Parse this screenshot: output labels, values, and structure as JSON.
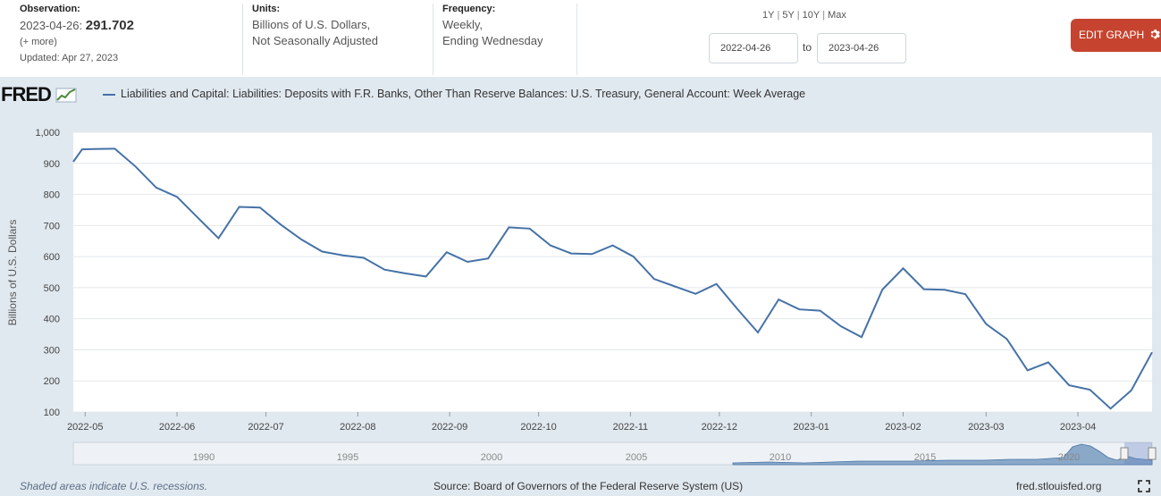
{
  "header": {
    "observation": {
      "label": "Observation:",
      "date": "2023-04-26:",
      "value": "291.702",
      "more": "(+ more)",
      "updated": "Updated: Apr 27, 2023"
    },
    "units": {
      "label": "Units:",
      "line1": "Billions of U.S. Dollars,",
      "line2": "Not Seasonally Adjusted"
    },
    "frequency": {
      "label": "Frequency:",
      "line1": "Weekly,",
      "line2": "Ending Wednesday"
    },
    "ranges": [
      "1Y",
      "5Y",
      "10Y",
      "Max"
    ],
    "date_from": "2022-04-26",
    "date_to": "2023-04-26",
    "to_label": "to",
    "edit_button": "EDIT GRAPH",
    "edit_icon": "gear-icon"
  },
  "logo": {
    "text": "FRED",
    "icon": "chart-trend-icon"
  },
  "chart_data": {
    "type": "line",
    "title": "Liabilities and Capital: Liabilities: Deposits with F.R. Banks, Other Than Reserve Balances: U.S. Treasury, General Account: Week Average",
    "ylabel": "Billions of U.S. Dollars",
    "ylim": [
      100,
      1000
    ],
    "yticks": [
      "1,000",
      "900",
      "800",
      "700",
      "600",
      "500",
      "400",
      "300",
      "200",
      "100"
    ],
    "yvalues": [
      1000,
      900,
      800,
      700,
      600,
      500,
      400,
      300,
      200,
      100
    ],
    "xlim": [
      "2022-04-27",
      "2023-04-26"
    ],
    "xticks": [
      {
        "label": "2022-05",
        "date": "2022-05-01"
      },
      {
        "label": "2022-06",
        "date": "2022-06-01"
      },
      {
        "label": "2022-07",
        "date": "2022-07-01"
      },
      {
        "label": "2022-08",
        "date": "2022-08-01"
      },
      {
        "label": "2022-09",
        "date": "2022-09-01"
      },
      {
        "label": "2022-10",
        "date": "2022-10-01"
      },
      {
        "label": "2022-11",
        "date": "2022-11-01"
      },
      {
        "label": "2022-12",
        "date": "2022-12-01"
      },
      {
        "label": "2023-01",
        "date": "2023-01-01"
      },
      {
        "label": "2023-02",
        "date": "2023-02-01"
      },
      {
        "label": "2023-03",
        "date": "2023-03-01"
      },
      {
        "label": "2023-04",
        "date": "2023-04-01"
      }
    ],
    "grid": true,
    "color": "#4572a7",
    "series": [
      {
        "x": [
          "2022-04-27",
          "2022-04-30",
          "2022-05-04",
          "2022-05-11",
          "2022-05-18",
          "2022-05-25",
          "2022-06-01",
          "2022-06-08",
          "2022-06-15",
          "2022-06-22",
          "2022-06-29",
          "2022-07-06",
          "2022-07-13",
          "2022-07-20",
          "2022-07-27",
          "2022-08-03",
          "2022-08-10",
          "2022-08-17",
          "2022-08-24",
          "2022-08-31",
          "2022-09-07",
          "2022-09-14",
          "2022-09-21",
          "2022-09-28",
          "2022-10-05",
          "2022-10-12",
          "2022-10-19",
          "2022-10-26",
          "2022-11-02",
          "2022-11-09",
          "2022-11-16",
          "2022-11-23",
          "2022-11-30",
          "2022-12-07",
          "2022-12-14",
          "2022-12-21",
          "2022-12-28",
          "2023-01-04",
          "2023-01-11",
          "2023-01-18",
          "2023-01-25",
          "2023-02-01",
          "2023-02-08",
          "2023-02-15",
          "2023-02-22",
          "2023-03-01",
          "2023-03-08",
          "2023-03-15",
          "2023-03-22",
          "2023-03-29",
          "2023-04-05",
          "2023-04-12",
          "2023-04-19",
          "2023-04-26"
        ],
        "y": [
          905,
          945,
          946,
          947,
          890,
          822,
          792,
          725,
          659,
          760,
          758,
          703,
          655,
          616,
          604,
          596,
          558,
          546,
          536,
          614,
          583,
          594,
          694,
          690,
          636,
          610,
          608,
          636,
          600,
          528,
          504,
          480,
          512,
          432,
          356,
          462,
          430,
          426,
          376,
          341,
          494,
          562,
          495,
          493,
          479,
          383,
          335,
          234,
          260,
          186,
          172,
          111,
          170,
          292
        ]
      }
    ]
  },
  "navigator": {
    "labels": [
      "1990",
      "1995",
      "2000",
      "2005",
      "2010",
      "2015",
      "2020"
    ]
  },
  "footer": {
    "note": "Shaded areas indicate U.S. recessions.",
    "source": "Source: Board of Governors of the Federal Reserve System (US)",
    "url": "fred.stlouisfed.org",
    "expand_icon": "expand-icon"
  }
}
